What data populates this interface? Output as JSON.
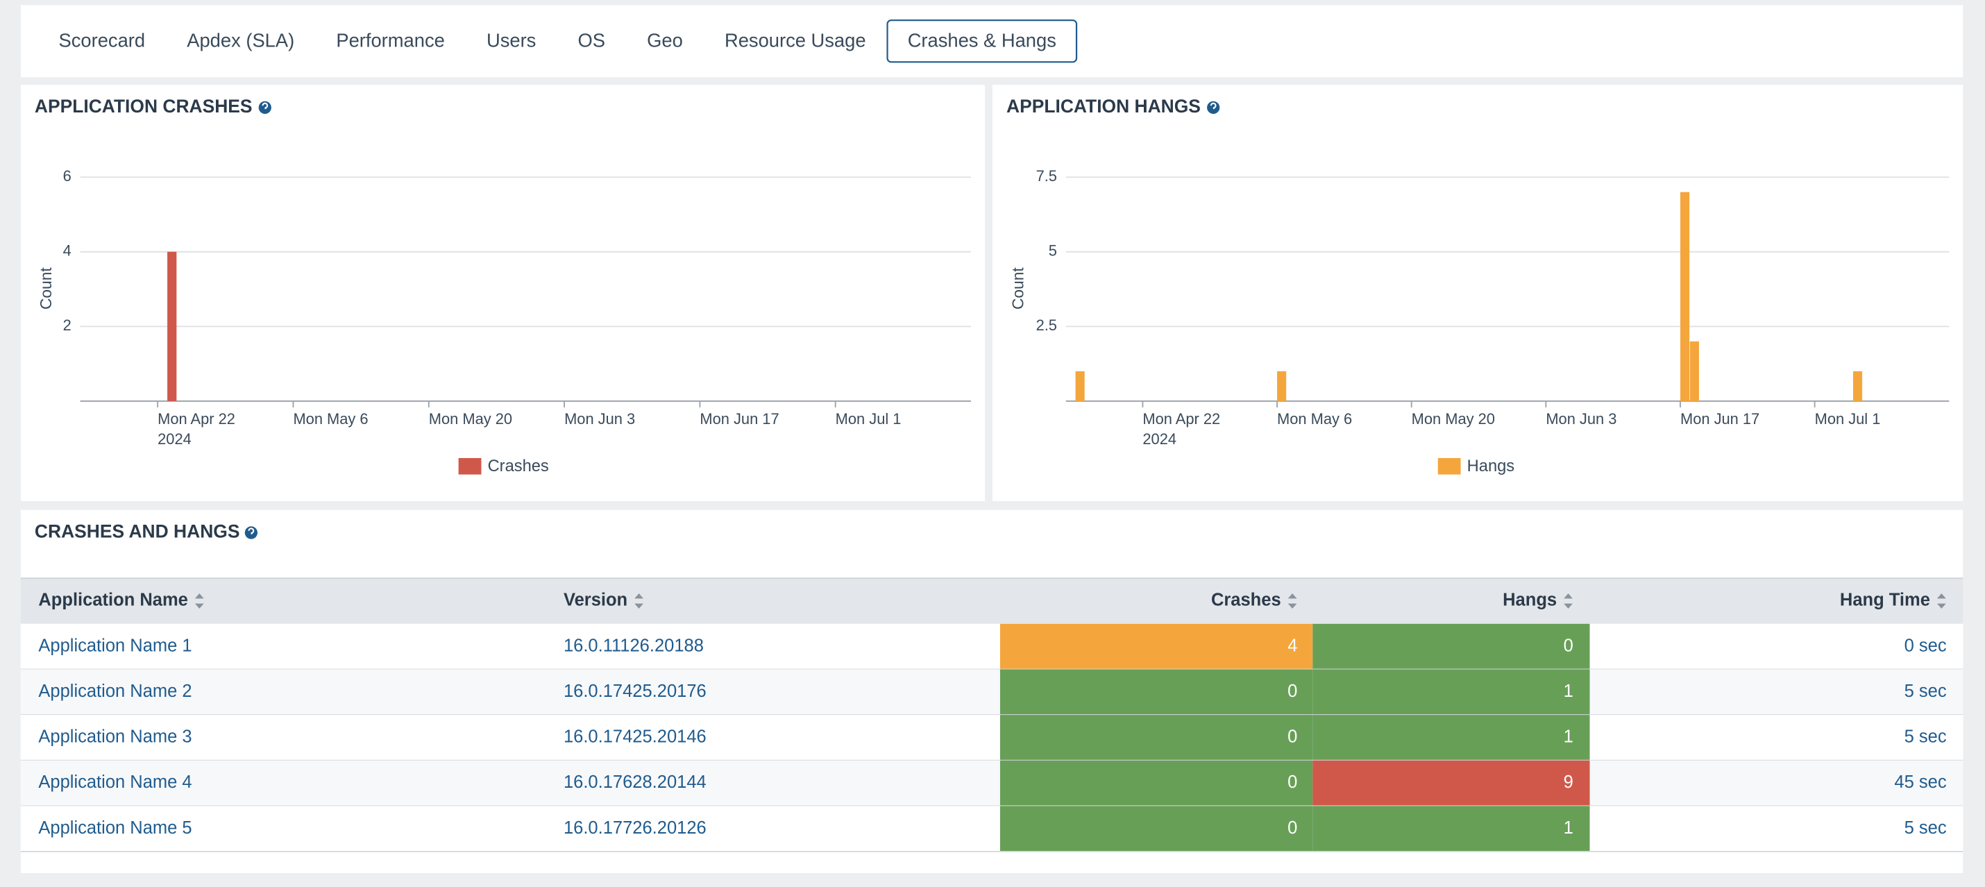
{
  "tabs": {
    "items": [
      "Scorecard",
      "Apdex (SLA)",
      "Performance",
      "Users",
      "OS",
      "Geo",
      "Resource Usage",
      "Crashes & Hangs"
    ],
    "active": 7
  },
  "chart_data": [
    {
      "type": "bar",
      "title": "APPLICATION CRASHES",
      "y_label": "Count",
      "x": [
        "2024-04-23"
      ],
      "series": [
        {
          "name": "Crashes",
          "color": "#d0584a",
          "values": [
            4
          ]
        }
      ],
      "xlim": [
        "2024-04-14",
        "2024-07-15"
      ],
      "xticks": [
        {
          "value": "2024-04-22",
          "label": "Mon Apr 22",
          "sublabel": "2024"
        },
        {
          "value": "2024-05-06",
          "label": "Mon May 6"
        },
        {
          "value": "2024-05-20",
          "label": "Mon May 20"
        },
        {
          "value": "2024-06-03",
          "label": "Mon Jun 3"
        },
        {
          "value": "2024-06-17",
          "label": "Mon Jun 17"
        },
        {
          "value": "2024-07-01",
          "label": "Mon Jul 1"
        }
      ],
      "ylim": [
        0,
        6
      ],
      "yticks": [
        2,
        4,
        6
      ],
      "grid": true
    },
    {
      "type": "bar",
      "title": "APPLICATION HANGS",
      "y_label": "Count",
      "x": [
        "2024-04-15",
        "2024-05-06",
        "2024-06-17",
        "2024-06-18",
        "2024-07-05"
      ],
      "series": [
        {
          "name": "Hangs",
          "color": "#f4a63c",
          "values": [
            1,
            1,
            7,
            2,
            1
          ]
        }
      ],
      "xlim": [
        "2024-04-14",
        "2024-07-15"
      ],
      "xticks": [
        {
          "value": "2024-04-22",
          "label": "Mon Apr 22",
          "sublabel": "2024"
        },
        {
          "value": "2024-05-06",
          "label": "Mon May 6"
        },
        {
          "value": "2024-05-20",
          "label": "Mon May 20"
        },
        {
          "value": "2024-06-03",
          "label": "Mon Jun 3"
        },
        {
          "value": "2024-06-17",
          "label": "Mon Jun 17"
        },
        {
          "value": "2024-07-01",
          "label": "Mon Jul 1"
        }
      ],
      "ylim": [
        0,
        7.5
      ],
      "yticks": [
        2.5,
        5,
        7.5
      ],
      "grid": true
    }
  ],
  "table": {
    "title": "CRASHES AND HANGS",
    "columns": [
      "Application Name",
      "Version",
      "Crashes",
      "Hangs",
      "Hang Time"
    ],
    "rows": [
      {
        "name": "Application Name 1",
        "version": "16.0.11126.20188",
        "crashes": 4,
        "hangs": 0,
        "hang_time": "0 sec",
        "crashes_color": "#f4a63c",
        "hangs_color": "#689f57"
      },
      {
        "name": "Application Name 2",
        "version": "16.0.17425.20176",
        "crashes": 0,
        "hangs": 1,
        "hang_time": "5 sec",
        "crashes_color": "#689f57",
        "hangs_color": "#689f57"
      },
      {
        "name": "Application Name 3",
        "version": "16.0.17425.20146",
        "crashes": 0,
        "hangs": 1,
        "hang_time": "5 sec",
        "crashes_color": "#689f57",
        "hangs_color": "#689f57"
      },
      {
        "name": "Application Name 4",
        "version": "16.0.17628.20144",
        "crashes": 0,
        "hangs": 9,
        "hang_time": "45 sec",
        "crashes_color": "#689f57",
        "hangs_color": "#d0584a"
      },
      {
        "name": "Application Name 5",
        "version": "16.0.17726.20126",
        "crashes": 0,
        "hangs": 1,
        "hang_time": "5 sec",
        "crashes_color": "#689f57",
        "hangs_color": "#689f57"
      }
    ]
  }
}
